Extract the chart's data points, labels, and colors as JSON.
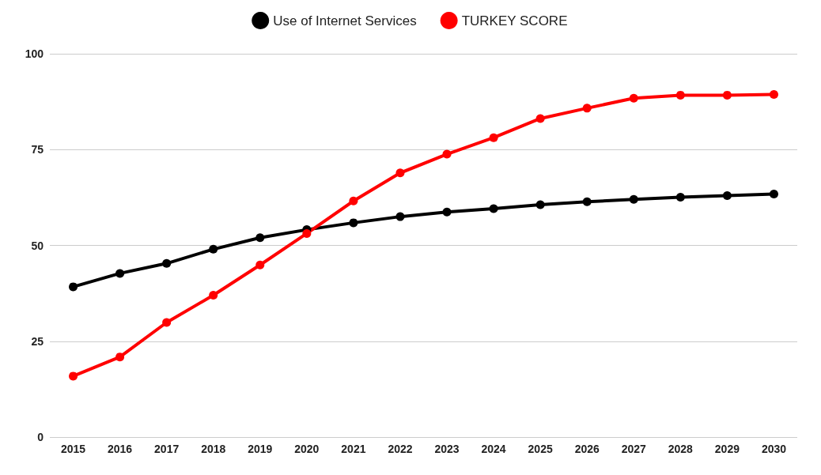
{
  "chart_data": {
    "type": "line",
    "categories": [
      "2015",
      "2016",
      "2017",
      "2018",
      "2019",
      "2020",
      "2021",
      "2022",
      "2023",
      "2024",
      "2025",
      "2026",
      "2027",
      "2028",
      "2029",
      "2030"
    ],
    "series": [
      {
        "name": "Use of Internet Services",
        "color": "#000000",
        "values": [
          39.2,
          42.7,
          45.3,
          49,
          52,
          54.1,
          55.9,
          57.5,
          58.7,
          59.6,
          60.6,
          61.4,
          62,
          62.6,
          63,
          63.4
        ]
      },
      {
        "name": "TURKEY SCORE",
        "color": "#ff0000",
        "values": [
          15.9,
          20.9,
          29.9,
          37,
          44.9,
          53.1,
          61.6,
          68.9,
          73.8,
          78.1,
          83.1,
          85.8,
          88.4,
          89.2,
          89.2,
          89.4
        ]
      }
    ],
    "ylim": [
      0,
      100
    ],
    "yticks": [
      0,
      25,
      50,
      75,
      100
    ],
    "grid": "y",
    "legend": "top",
    "marker": "circle",
    "line_style": "solid"
  }
}
